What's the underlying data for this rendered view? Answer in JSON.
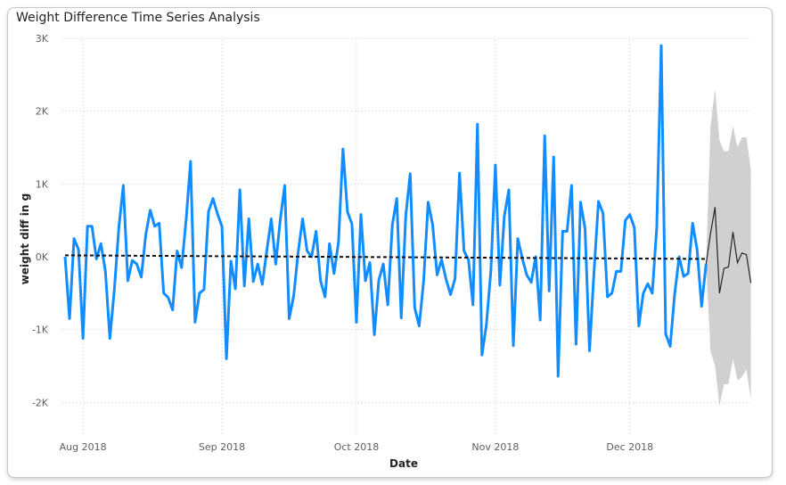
{
  "chart_data": {
    "type": "line",
    "title": "Weight Difference Time Series Analysis",
    "xlabel": "Date",
    "ylabel": "weight diff in g",
    "ylim": [
      -2500,
      3000
    ],
    "x_start": "2018-07-28",
    "y_ticks": [
      {
        "value": 3000,
        "label": "3K"
      },
      {
        "value": 2000,
        "label": "2K"
      },
      {
        "value": 1000,
        "label": "1K"
      },
      {
        "value": 0,
        "label": "0K"
      },
      {
        "value": -1000,
        "label": "-1K"
      },
      {
        "value": -2000,
        "label": "-2K"
      }
    ],
    "x_ticks": [
      {
        "date": "2018-08-01",
        "label": "Aug 2018"
      },
      {
        "date": "2018-09-01",
        "label": "Sep 2018"
      },
      {
        "date": "2018-10-01",
        "label": "Oct 2018"
      },
      {
        "date": "2018-11-01",
        "label": "Nov 2018"
      },
      {
        "date": "2018-12-01",
        "label": "Dec 2018"
      }
    ],
    "grid": true,
    "colors": {
      "actual": "#118dff",
      "forecast": "#252423",
      "band": "#d0d0d0",
      "trend": "#111111",
      "grid": "#c8c8c8"
    },
    "actual": [
      0,
      -850,
      250,
      100,
      -1120,
      420,
      420,
      -30,
      180,
      -200,
      -1120,
      -450,
      400,
      980,
      -330,
      -50,
      -100,
      -280,
      300,
      640,
      420,
      460,
      -500,
      -560,
      -730,
      80,
      -150,
      500,
      1310,
      -900,
      -500,
      -450,
      620,
      800,
      590,
      420,
      -1400,
      -60,
      -440,
      920,
      -400,
      520,
      -340,
      -100,
      -380,
      80,
      520,
      -100,
      500,
      980,
      -850,
      -540,
      60,
      520,
      80,
      0,
      350,
      -330,
      -550,
      180,
      -230,
      200,
      1480,
      620,
      450,
      -900,
      580,
      -330,
      -80,
      -1070,
      -320,
      -100,
      -660,
      430,
      800,
      -840,
      560,
      1140,
      -700,
      -950,
      -330,
      750,
      440,
      -250,
      -40,
      -310,
      -520,
      -300,
      1150,
      80,
      -40,
      -660,
      1820,
      -1350,
      -930,
      -190,
      1260,
      -390,
      560,
      920,
      -1220,
      250,
      -20,
      -250,
      -350,
      0,
      -870,
      1660,
      -470,
      1370,
      -1640,
      350,
      350,
      980,
      -1200,
      750,
      390,
      -1290,
      -210,
      760,
      600,
      -550,
      -500,
      -200,
      -200,
      500,
      580,
      400,
      -950,
      -500,
      -370,
      -500,
      400,
      2900,
      -1060,
      -1230,
      -510,
      0,
      -270,
      -230,
      460,
      100,
      -680,
      -100
    ],
    "forecast_start_index": 144,
    "forecast": [
      -100,
      320,
      680,
      -500,
      -160,
      -140,
      340,
      -80,
      50,
      30,
      -360
    ],
    "band_upper": [
      1800,
      2300,
      1600,
      1450,
      1450,
      1800,
      1500,
      1640,
      1640,
      1200
    ],
    "band_lower": [
      -1300,
      -1500,
      -2050,
      -1750,
      -1750,
      -1400,
      -1700,
      -1650,
      -1550,
      -1950
    ],
    "trend": {
      "start": 20,
      "end": -30
    }
  }
}
